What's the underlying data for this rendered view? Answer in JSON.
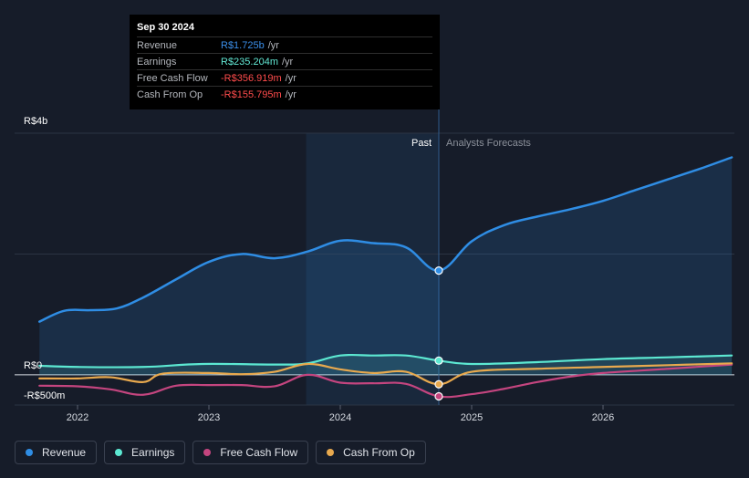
{
  "tooltip": {
    "date": "Sep 30 2024",
    "rows": [
      {
        "label": "Revenue",
        "value": "R$1.725b",
        "unit": "/yr",
        "color": "#3b8ee8"
      },
      {
        "label": "Earnings",
        "value": "R$235.204m",
        "unit": "/yr",
        "color": "#62e8d4"
      },
      {
        "label": "Free Cash Flow",
        "value": "-R$356.919m",
        "unit": "/yr",
        "color": "#ff4c4c"
      },
      {
        "label": "Cash From Op",
        "value": "-R$155.795m",
        "unit": "/yr",
        "color": "#ff4c4c"
      }
    ]
  },
  "legend": [
    {
      "label": "Revenue",
      "color": "#2f8de4"
    },
    {
      "label": "Earnings",
      "color": "#5ce8d2"
    },
    {
      "label": "Free Cash Flow",
      "color": "#c4457f"
    },
    {
      "label": "Cash From Op",
      "color": "#e8a94e"
    }
  ],
  "chart_data": {
    "type": "line",
    "title": "",
    "xlabel": "",
    "ylabel": "",
    "y_axis_labels": {
      "top": "R$4b",
      "zero": "R$0",
      "bottom": "-R$500m"
    },
    "xlim": [
      2021.7,
      2026.98
    ],
    "ylim": [
      -500,
      4000
    ],
    "x_ticks": [
      2022,
      2023,
      2024,
      2025,
      2026
    ],
    "x_tick_labels": [
      "2022",
      "2023",
      "2024",
      "2025",
      "2026"
    ],
    "grid_y": [
      0,
      2000,
      4000
    ],
    "past_label": "Past",
    "forecast_label": "Analysts Forecasts",
    "past_boundary_x": 2024.75,
    "shaded_start_x": 2023.74,
    "series": [
      {
        "name": "Revenue",
        "color": "#2f8de4",
        "area": true,
        "x": [
          2021.71,
          2021.9,
          2022.1,
          2022.3,
          2022.5,
          2022.75,
          2023.0,
          2023.25,
          2023.5,
          2023.75,
          2024.0,
          2024.25,
          2024.5,
          2024.75,
          2025.0,
          2025.25,
          2025.5,
          2025.75,
          2026.0,
          2026.25,
          2026.5,
          2026.75,
          2026.98
        ],
        "y": [
          880,
          1060,
          1070,
          1100,
          1280,
          1580,
          1870,
          2000,
          1930,
          2040,
          2220,
          2180,
          2110,
          1725,
          2210,
          2480,
          2620,
          2740,
          2880,
          3060,
          3240,
          3420,
          3600
        ]
      },
      {
        "name": "Earnings",
        "color": "#5ce8d2",
        "area": true,
        "x": [
          2021.71,
          2022.0,
          2022.5,
          2022.95,
          2023.5,
          2023.75,
          2024.0,
          2024.25,
          2024.5,
          2024.75,
          2025.0,
          2025.5,
          2026.0,
          2026.5,
          2026.98
        ],
        "y": [
          150,
          130,
          130,
          180,
          170,
          190,
          320,
          320,
          320,
          235,
          180,
          210,
          260,
          290,
          320
        ]
      },
      {
        "name": "Free Cash Flow",
        "color": "#c4457f",
        "area": false,
        "x": [
          2021.71,
          2022.0,
          2022.25,
          2022.5,
          2022.75,
          2023.0,
          2023.25,
          2023.5,
          2023.75,
          2024.0,
          2024.25,
          2024.5,
          2024.75,
          2025.0,
          2025.25,
          2025.5,
          2025.75,
          2026.0,
          2026.5,
          2026.98
        ],
        "y": [
          -180,
          -190,
          -240,
          -330,
          -180,
          -170,
          -170,
          -190,
          0,
          -130,
          -140,
          -150,
          -357,
          -320,
          -230,
          -120,
          -30,
          30,
          100,
          170
        ]
      },
      {
        "name": "Cash From Op",
        "color": "#e8a94e",
        "area": false,
        "x": [
          2021.71,
          2022.0,
          2022.25,
          2022.5,
          2022.65,
          2023.0,
          2023.25,
          2023.5,
          2023.75,
          2024.0,
          2024.25,
          2024.5,
          2024.75,
          2025.0,
          2025.5,
          2026.0,
          2026.5,
          2026.98
        ],
        "y": [
          -60,
          -60,
          -40,
          -120,
          20,
          30,
          10,
          50,
          180,
          90,
          30,
          50,
          -156,
          50,
          100,
          130,
          160,
          190
        ]
      }
    ],
    "markers": [
      {
        "series": "Revenue",
        "x": 2024.75,
        "y": 1725
      },
      {
        "series": "Earnings",
        "x": 2024.75,
        "y": 235
      },
      {
        "series": "Free Cash Flow",
        "x": 2024.75,
        "y": -357
      },
      {
        "series": "Cash From Op",
        "x": 2024.75,
        "y": -156
      }
    ]
  }
}
